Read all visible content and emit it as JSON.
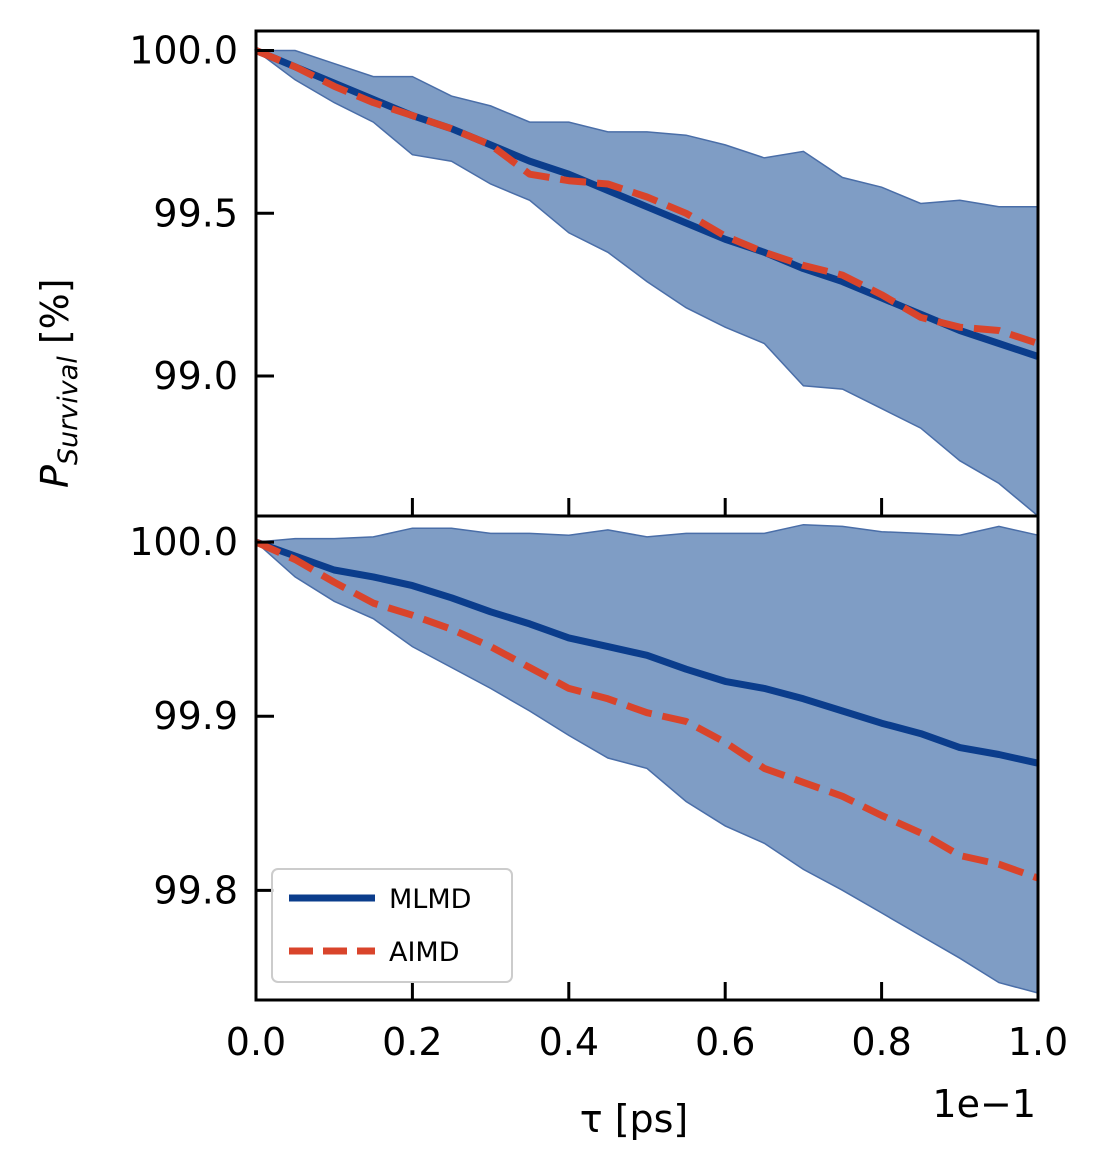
{
  "chart_data": [
    {
      "panel": "top",
      "type": "line",
      "x_ticks": [
        "0.0",
        "0.2",
        "0.4",
        "0.6",
        "0.8",
        "1.0"
      ],
      "x_tick_values": [
        0.0,
        0.2,
        0.4,
        0.6,
        0.8,
        1.0
      ],
      "y_ticks": [
        "100.0",
        "99.5",
        "99.0"
      ],
      "y_tick_values": [
        100.0,
        99.5,
        99.0
      ],
      "xlim": [
        0.0,
        1.0
      ],
      "ylim": [
        98.57,
        100.06
      ],
      "x": [
        0.0,
        0.05,
        0.1,
        0.15,
        0.2,
        0.25,
        0.3,
        0.35,
        0.4,
        0.45,
        0.5,
        0.55,
        0.6,
        0.65,
        0.7,
        0.75,
        0.8,
        0.85,
        0.9,
        0.95,
        1.0
      ],
      "band_upper": [
        100.0,
        100.0,
        99.96,
        99.92,
        99.92,
        99.86,
        99.83,
        99.78,
        99.78,
        99.75,
        99.75,
        99.74,
        99.71,
        99.67,
        99.69,
        99.61,
        99.58,
        99.53,
        99.54,
        99.52,
        99.52
      ],
      "band_lower": [
        100.0,
        99.91,
        99.84,
        99.78,
        99.68,
        99.66,
        99.59,
        99.54,
        99.44,
        99.38,
        99.29,
        99.21,
        99.15,
        99.1,
        98.97,
        98.96,
        98.9,
        98.84,
        98.74,
        98.67,
        98.57
      ],
      "series": [
        {
          "name": "MLMD",
          "values": [
            100.0,
            99.95,
            99.9,
            99.85,
            99.8,
            99.76,
            99.71,
            99.66,
            99.62,
            99.57,
            99.52,
            99.47,
            99.42,
            99.38,
            99.33,
            99.29,
            99.24,
            99.19,
            99.14,
            99.1,
            99.06
          ]
        },
        {
          "name": "AIMD",
          "values": [
            100.0,
            99.95,
            99.89,
            99.84,
            99.8,
            99.76,
            99.71,
            99.62,
            99.6,
            99.59,
            99.55,
            99.5,
            99.43,
            99.38,
            99.34,
            99.31,
            99.25,
            99.18,
            99.15,
            99.14,
            99.1
          ]
        }
      ]
    },
    {
      "panel": "bottom",
      "type": "line",
      "x_ticks": [
        "0.0",
        "0.2",
        "0.4",
        "0.6",
        "0.8",
        "1.0"
      ],
      "x_tick_values": [
        0.0,
        0.2,
        0.4,
        0.6,
        0.8,
        1.0
      ],
      "y_ticks": [
        "100.0",
        "99.9",
        "99.8"
      ],
      "y_tick_values": [
        100.0,
        99.9,
        99.8
      ],
      "xlim": [
        0.0,
        1.0
      ],
      "ylim": [
        99.737,
        100.015
      ],
      "x": [
        0.0,
        0.05,
        0.1,
        0.15,
        0.2,
        0.25,
        0.3,
        0.35,
        0.4,
        0.45,
        0.5,
        0.55,
        0.6,
        0.65,
        0.7,
        0.75,
        0.8,
        0.85,
        0.9,
        0.95,
        1.0
      ],
      "band_upper": [
        100.0,
        100.002,
        100.002,
        100.003,
        100.008,
        100.008,
        100.005,
        100.005,
        100.004,
        100.007,
        100.003,
        100.005,
        100.005,
        100.005,
        100.01,
        100.009,
        100.006,
        100.005,
        100.004,
        100.009,
        100.004
      ],
      "band_lower": [
        100.0,
        99.98,
        99.966,
        99.956,
        99.94,
        99.928,
        99.916,
        99.903,
        99.889,
        99.876,
        99.87,
        99.851,
        99.837,
        99.827,
        99.812,
        99.8,
        99.787,
        99.774,
        99.761,
        99.747,
        99.741
      ],
      "series": [
        {
          "name": "MLMD",
          "values": [
            100.0,
            99.992,
            99.984,
            99.98,
            99.975,
            99.968,
            99.96,
            99.953,
            99.945,
            99.94,
            99.935,
            99.927,
            99.92,
            99.916,
            99.91,
            99.903,
            99.896,
            99.89,
            99.882,
            99.878,
            99.873
          ]
        },
        {
          "name": "AIMD",
          "values": [
            100.0,
            99.99,
            99.977,
            99.965,
            99.958,
            99.95,
            99.94,
            99.928,
            99.916,
            99.91,
            99.902,
            99.897,
            99.885,
            99.87,
            99.862,
            99.854,
            99.843,
            99.833,
            99.82,
            99.815,
            99.807
          ]
        }
      ],
      "legend": {
        "placement": "lower-left",
        "entries": [
          {
            "name": "MLMD",
            "style": "solid"
          },
          {
            "name": "AIMD",
            "style": "dashed"
          }
        ]
      }
    }
  ],
  "labels": {
    "ylabel_main": "P",
    "ylabel_sub": "Survival",
    "ylabel_unit": " [%]",
    "xlabel": "τ [ps]",
    "x_offset": "1e−1"
  },
  "colors": {
    "mlmd": "#0b3d8c",
    "aimd": "#d9442b",
    "band_fill": "#7f9dc5",
    "band_edge": "#4a6ea8"
  }
}
